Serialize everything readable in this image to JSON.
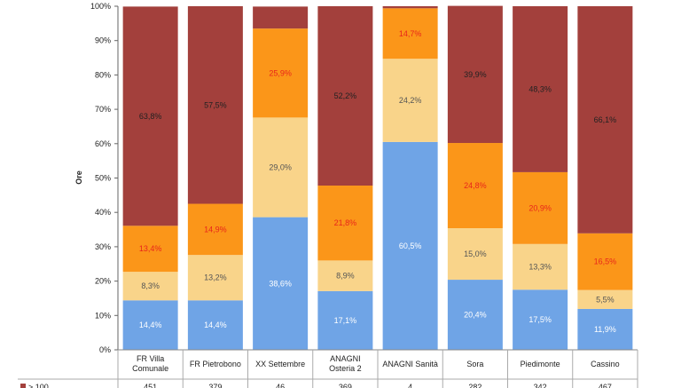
{
  "chart_data": {
    "type": "bar",
    "stacked": true,
    "percent": true,
    "ylabel": "Ore",
    "yticks": [
      "0%",
      "10%",
      "20%",
      "30%",
      "40%",
      "50%",
      "60%",
      "70%",
      "80%",
      "90%",
      "100%"
    ],
    "ylim": [
      0,
      100
    ],
    "grid": false,
    "categories": [
      [
        "FR Villa",
        "Comunale"
      ],
      [
        "FR Pietrobono"
      ],
      [
        "XX Settembre"
      ],
      [
        "ANAGNI",
        "Osteria 2"
      ],
      [
        "ANAGNI Sanità"
      ],
      [
        "Sora"
      ],
      [
        "Piedimonte"
      ],
      [
        "Cassino"
      ]
    ],
    "series": [
      {
        "color": "#6fa4e6",
        "label_color": "#ffffff",
        "values": [
          14.4,
          14.4,
          38.6,
          17.1,
          60.5,
          20.4,
          17.5,
          11.9
        ],
        "labels": [
          "14,4%",
          "14,4%",
          "38,6%",
          "17,1%",
          "60,5%",
          "20,4%",
          "17,5%",
          "11,9%"
        ]
      },
      {
        "color": "#f9d48a",
        "label_color": "#555555",
        "values": [
          8.3,
          13.2,
          29.0,
          8.9,
          24.2,
          15.0,
          13.3,
          5.5
        ],
        "labels": [
          "8,3%",
          "13,2%",
          "29,0%",
          "8,9%",
          "24,2%",
          "15,0%",
          "13,3%",
          "5,5%"
        ]
      },
      {
        "color": "#fb9619",
        "label_color": "#e8251b",
        "values": [
          13.4,
          14.9,
          25.9,
          21.8,
          14.7,
          24.8,
          20.9,
          16.5
        ],
        "labels": [
          "13,4%",
          "14,9%",
          "25,9%",
          "21,8%",
          "14,7%",
          "24,8%",
          "20,9%",
          "16,5%"
        ]
      },
      {
        "color": "#a3403c",
        "label_color": "#222222",
        "values": [
          63.8,
          57.5,
          6.4,
          52.2,
          0.6,
          39.9,
          48.3,
          66.1
        ],
        "labels": [
          "63,8%",
          "57,5%",
          "",
          "52,2%",
          "",
          "39,9%",
          "48,3%",
          "66,1%"
        ]
      }
    ],
    "table": {
      "row_label": "> 100",
      "values": [
        "451",
        "379",
        "46",
        "369",
        "4",
        "282",
        "342",
        "467"
      ]
    }
  }
}
